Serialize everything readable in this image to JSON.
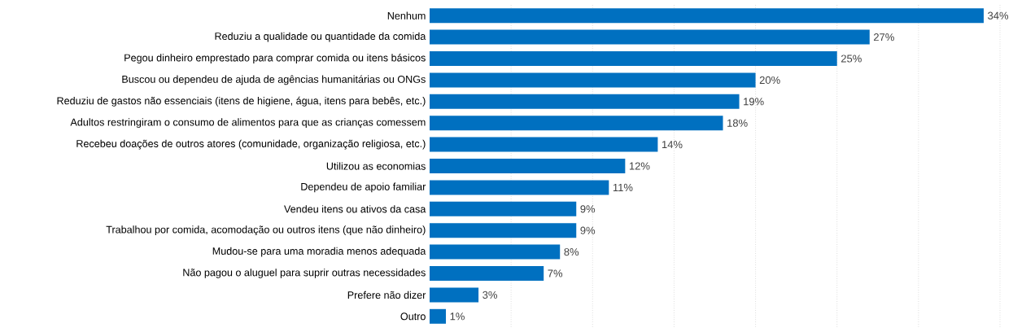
{
  "chart_data": {
    "type": "bar",
    "orientation": "horizontal",
    "categories": [
      "Nenhum",
      "Reduziu a qualidade ou quantidade da comida",
      "Pegou dinheiro emprestado para comprar comida ou itens básicos",
      "Buscou ou dependeu de ajuda de agências humanitárias ou ONGs",
      "Reduziu de gastos não essenciais (itens de higiene, água, itens para bebês, etc.)",
      "Adultos restringiram o consumo de alimentos para que as crianças comessem",
      "Recebeu doações de outros atores (comunidade, organização religiosa, etc.)",
      "Utilizou as economias",
      "Dependeu de apoio familiar",
      "Vendeu itens ou ativos da casa",
      "Trabalhou por comida, acomodação ou outros itens (que não dinheiro)",
      "Mudou-se para uma moradia menos adequada",
      "Não pagou o aluguel para suprir outras necessidades",
      "Prefere não dizer",
      "Outro"
    ],
    "values": [
      34,
      27,
      25,
      20,
      19,
      18,
      14,
      12,
      11,
      9,
      9,
      8,
      7,
      3,
      1
    ],
    "value_labels": [
      "34%",
      "27%",
      "25%",
      "20%",
      "19%",
      "18%",
      "14%",
      "12%",
      "11%",
      "9%",
      "9%",
      "8%",
      "7%",
      "3%",
      "1%"
    ],
    "color": "#0070c0",
    "xlim": [
      0,
      35
    ],
    "xticks": [
      {
        "value": 5,
        "label": null
      },
      {
        "value": 10,
        "label": null
      },
      {
        "value": 15,
        "label": null
      },
      {
        "value": 20,
        "label": null
      },
      {
        "value": 25,
        "label": null
      },
      {
        "value": 30,
        "label": null
      },
      {
        "value": 35,
        "label": null
      }
    ],
    "tick_labels": "y",
    "grid": "x"
  }
}
